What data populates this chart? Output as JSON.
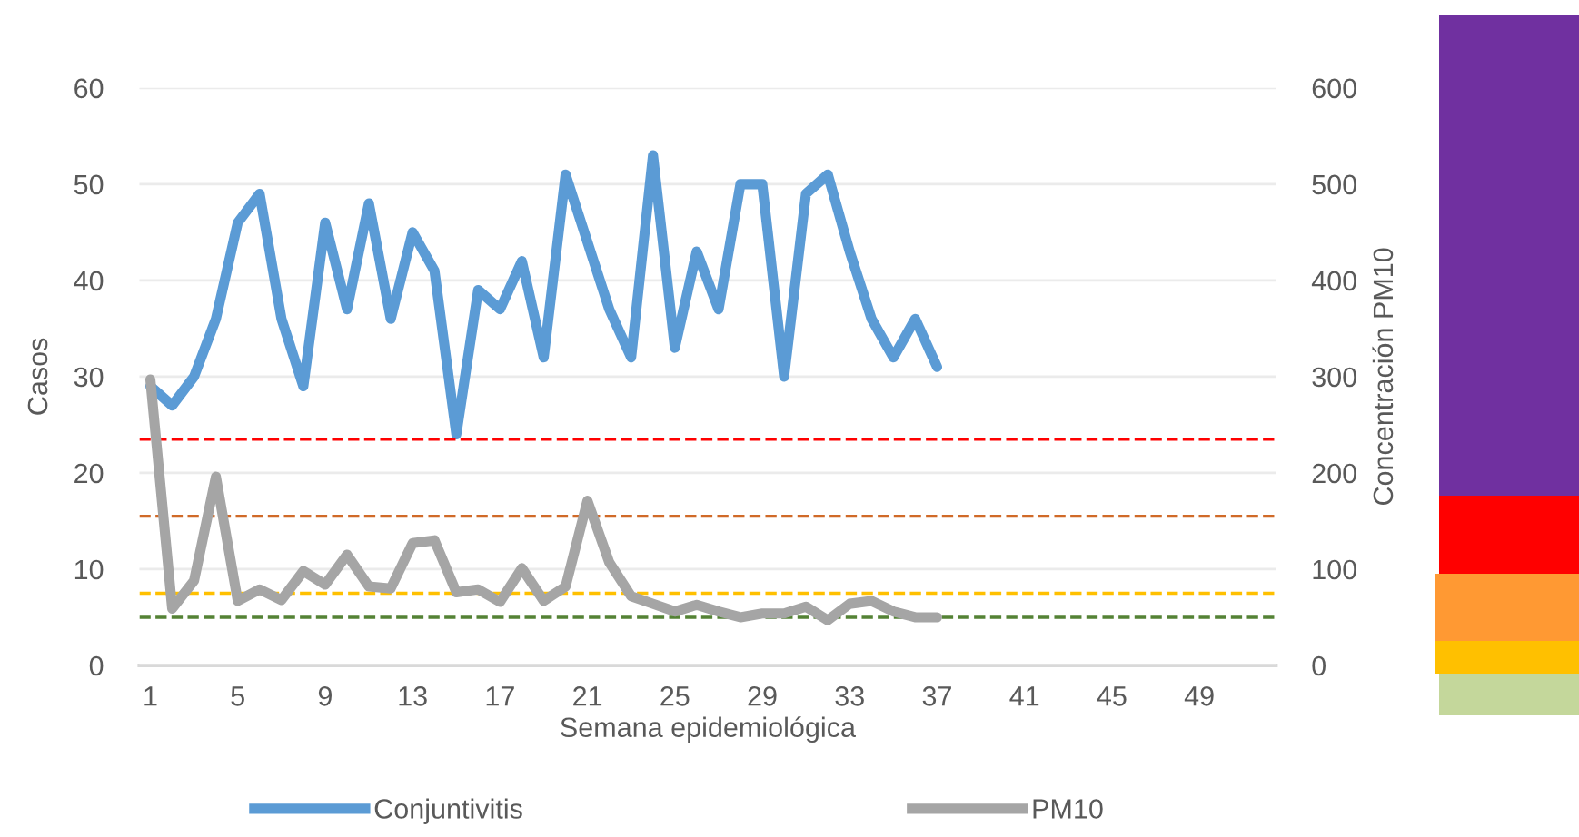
{
  "chart_data": {
    "type": "line",
    "xlabel": "Semana epidemiológica",
    "ylabel": "Casos",
    "y2label": "Concentración PM10",
    "categories": [
      "1",
      null,
      null,
      null,
      "5",
      null,
      null,
      null,
      "9",
      null,
      null,
      null,
      "13",
      null,
      null,
      null,
      "17",
      null,
      null,
      null,
      "21",
      null,
      null,
      null,
      "25",
      null,
      null,
      null,
      "29",
      null,
      null,
      null,
      "33",
      null,
      null,
      null,
      "37",
      null,
      null,
      null,
      "41",
      null,
      null,
      null,
      "45",
      null,
      null,
      null,
      "49",
      null,
      null,
      null
    ],
    "series": [
      {
        "name": "Conjuntivitis",
        "color": "#5b9bd5",
        "values": [
          29,
          27,
          30,
          36,
          46,
          49,
          36,
          29,
          46,
          37,
          48,
          36,
          45,
          41,
          24,
          39,
          37,
          42,
          32,
          51,
          44,
          37,
          32,
          53,
          33,
          43,
          37,
          50,
          50,
          30,
          49,
          51,
          43,
          36,
          32,
          36,
          31,
          null,
          null,
          null,
          null,
          null,
          null,
          null,
          null,
          null,
          null,
          null,
          null,
          null,
          null,
          null
        ]
      },
      {
        "name": "PM10",
        "color": "#a5a5a5",
        "axis": "y2",
        "values": [
          297,
          59,
          88,
          196,
          67,
          79,
          68,
          98,
          84,
          115,
          82,
          80,
          127,
          130,
          76,
          79,
          66,
          101,
          67,
          82,
          171,
          107,
          72,
          64,
          56,
          63,
          56,
          50,
          54,
          54,
          61,
          47,
          64,
          67,
          56,
          50,
          50,
          null,
          null,
          null,
          null,
          null,
          null,
          null,
          null,
          null,
          null,
          null,
          null,
          null,
          null,
          null
        ]
      }
    ],
    "ylim": [
      0,
      60
    ],
    "yticks": [
      0,
      10,
      20,
      30,
      40,
      50,
      60
    ],
    "y2lim": [
      0,
      600
    ],
    "y2ticks": [
      0,
      100,
      200,
      300,
      400,
      500,
      600
    ],
    "ref_lines": [
      {
        "axis": "y2",
        "value": 235,
        "color": "#ff0000",
        "line_style": "dashed"
      },
      {
        "axis": "y2",
        "value": 155,
        "color": "#d06a28",
        "line_style": "dashed"
      },
      {
        "axis": "y2",
        "value": 75,
        "color": "#ffc000",
        "line_style": "dashed"
      },
      {
        "axis": "y2",
        "value": 50,
        "color": "#548235",
        "line_style": "dashed"
      }
    ],
    "grid": "y",
    "legend": "bottom",
    "line_style": "solid",
    "marker": "none"
  }
}
